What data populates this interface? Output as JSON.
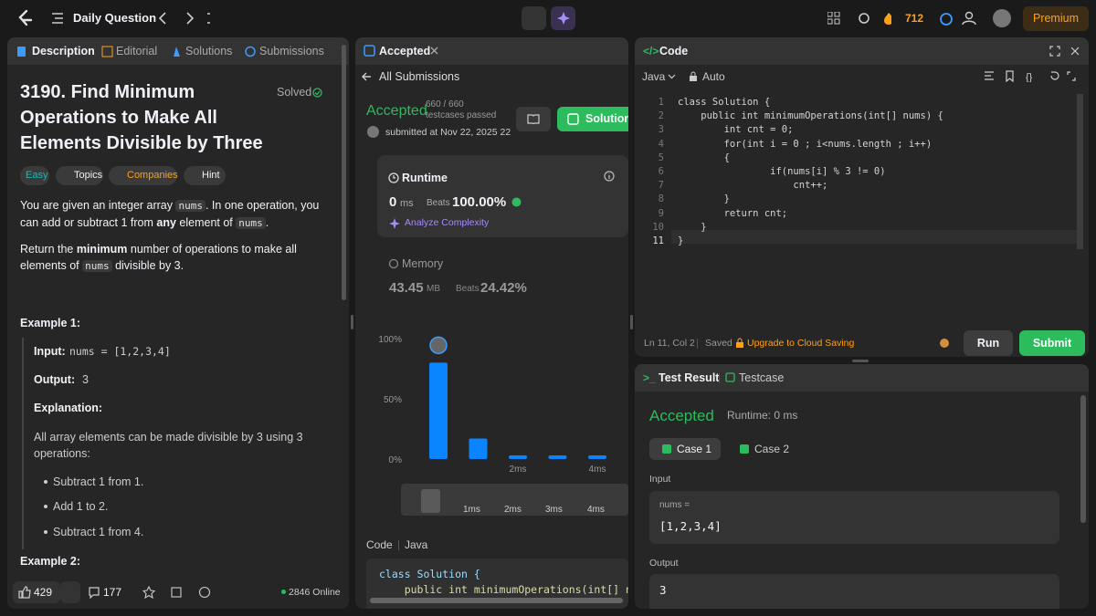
{
  "top_bar": {
    "title": "Daily Question",
    "streak": "712",
    "premium": "Premium"
  },
  "description": {
    "tabs": [
      "Description",
      "Editorial",
      "Solutions",
      "Submissions"
    ],
    "title": "3190. Find Minimum Operations to Make All Elements Divisible by Three",
    "status": "Solved",
    "tags": [
      "Easy",
      "Topics",
      "Companies",
      "Hint"
    ],
    "paragraph_1": [
      "You are given an integer array ",
      "nums",
      ". In one operation, you can add or subtract 1 from ",
      "any",
      " element of ",
      "nums",
      "."
    ],
    "paragraph_2": [
      "Return the ",
      "minimum",
      " number of operations to make all elements of ",
      "nums",
      " divisible by 3."
    ],
    "example_1": {
      "heading": "Example 1:",
      "input_label": "Input:",
      "input": "nums = [1,2,3,4]",
      "output_label": "Output:",
      "output": "3",
      "explanation_label": "Explanation:",
      "explanation": "All array elements can be made divisible by 3 using 3 operations:",
      "steps": [
        "Subtract 1 from 1.",
        "Add 1 to 2.",
        "Subtract 1 from 4."
      ]
    },
    "example_2_heading": "Example 2:",
    "footer": {
      "likes": "429",
      "comments": "177",
      "online": "2846 Online"
    }
  },
  "submission": {
    "tab": "Accepted",
    "back": "All Submissions",
    "status": "Accepted",
    "testcases": "660 / 660 testcases passed",
    "submitted": "submitted at Nov 22, 2025 22",
    "solution_button": "Solution",
    "runtime": {
      "label": "Runtime",
      "value": "0",
      "unit": "ms",
      "beats_label": "Beats",
      "beats": "100.00%",
      "analyze": "Analyze Complexity"
    },
    "memory": {
      "label": "Memory",
      "value": "43.45",
      "unit": "MB",
      "beats_label": "Beats",
      "beats": "24.42%"
    },
    "range_labels": [
      "1ms",
      "2ms",
      "3ms",
      "4ms"
    ],
    "code_label": "Code",
    "language": "Java",
    "code_preview": [
      "class Solution {",
      "    public int minimumOperations(int[] nu"
    ]
  },
  "chart_data": {
    "type": "bar",
    "categories": [
      null,
      null,
      "2ms",
      null,
      "4ms"
    ],
    "values": [
      80,
      17,
      3,
      3,
      3
    ],
    "color": "#0a84ff",
    "ylim": [
      0,
      100
    ],
    "yticks": [
      {
        "value": 0,
        "label": "0%"
      },
      {
        "value": 50,
        "label": "50%"
      },
      {
        "value": 100,
        "label": "100%"
      }
    ]
  },
  "editor": {
    "tab": "Code",
    "language": "Java",
    "mode": "Auto",
    "line_numbers": [
      1,
      2,
      3,
      4,
      5,
      6,
      7,
      8,
      9,
      10,
      11
    ],
    "lines": [
      "class Solution {",
      "    public int minimumOperations(int[] nums) {",
      "        int cnt = 0;",
      "        for(int i = 0 ; i<nums.length ; i++)",
      "        {",
      "                if(nums[i] % 3 != 0)",
      "                    cnt++;",
      "        }",
      "        return cnt;",
      "    }",
      "}"
    ],
    "cursor": "Ln 11, Col 2",
    "saved": "Saved",
    "upgrade": "Upgrade to Cloud Saving",
    "run": "Run",
    "submit": "Submit"
  },
  "test_result": {
    "tabs": [
      "Test Result",
      "Testcase"
    ],
    "status": "Accepted",
    "runtime": "Runtime: 0 ms",
    "cases": [
      "Case 1",
      "Case 2"
    ],
    "input_label": "Input",
    "input_name": "nums =",
    "input_value": "[1,2,3,4]",
    "output_label": "Output",
    "output_value": "3"
  }
}
